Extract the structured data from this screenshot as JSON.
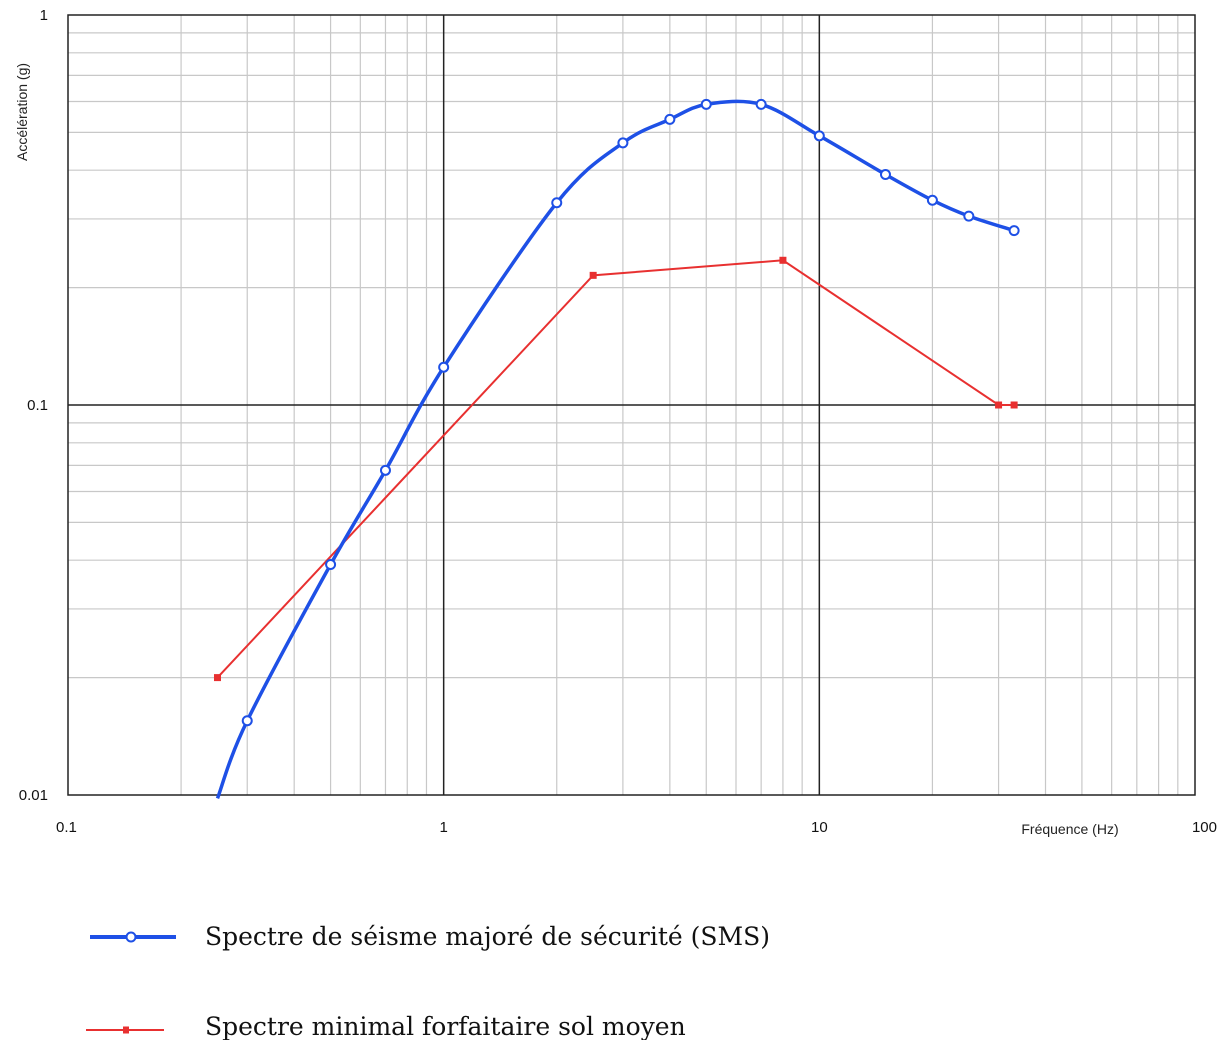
{
  "chart_data": {
    "type": "line",
    "xscale": "log",
    "yscale": "log",
    "xlim": [
      0.1,
      100
    ],
    "ylim": [
      0.01,
      1
    ],
    "xlabel": "Fréquence (Hz)",
    "ylabel": "Accélération (g)",
    "x_ticks": [
      "0.1",
      "1",
      "10",
      "100"
    ],
    "y_ticks": [
      "0.01",
      "0.1",
      "1"
    ],
    "grid": true,
    "legend_position": "bottom",
    "series": [
      {
        "name": "Spectre de séisme majoré de sécurité (SMS)",
        "color": "#1e50e6",
        "marker": "open-circle",
        "points": [
          [
            0.25,
            0.0098
          ],
          [
            0.3,
            0.0155
          ],
          [
            0.5,
            0.039
          ],
          [
            0.7,
            0.068
          ],
          [
            1.0,
            0.125
          ],
          [
            2.0,
            0.33
          ],
          [
            3.0,
            0.47
          ],
          [
            4.0,
            0.54
          ],
          [
            5.0,
            0.59
          ],
          [
            7.0,
            0.59
          ],
          [
            10.0,
            0.49
          ],
          [
            15.0,
            0.39
          ],
          [
            20.0,
            0.335
          ],
          [
            25.0,
            0.305
          ],
          [
            33.0,
            0.28
          ]
        ]
      },
      {
        "name": "Spectre minimal forfaitaire sol moyen",
        "color": "#e83030",
        "marker": "filled-square",
        "points": [
          [
            0.25,
            0.02
          ],
          [
            2.5,
            0.215
          ],
          [
            8.0,
            0.235
          ],
          [
            30.0,
            0.1
          ],
          [
            33.0,
            0.1
          ]
        ]
      }
    ]
  }
}
